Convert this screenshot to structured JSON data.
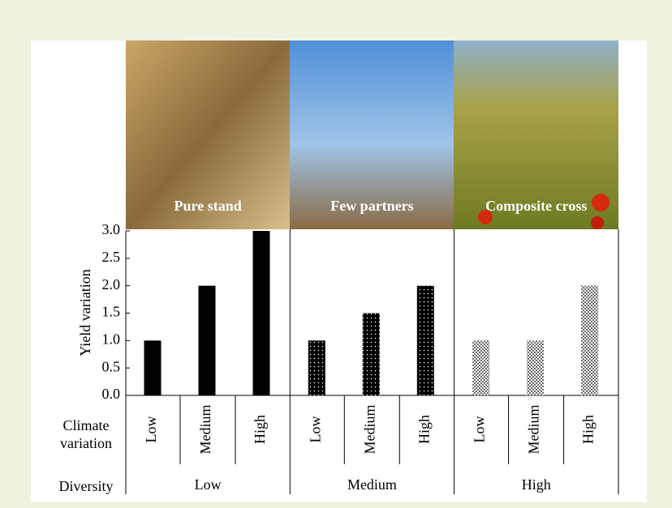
{
  "chart_data": {
    "type": "bar",
    "y_label": "Yield variation",
    "ylim": [
      0,
      3
    ],
    "yticks": [
      {
        "value": 0,
        "label": "0.0"
      },
      {
        "value": 0.5,
        "label": "0.5"
      },
      {
        "value": 1,
        "label": "1.0"
      },
      {
        "value": 1.5,
        "label": "1.5"
      },
      {
        "value": 2,
        "label": "2.0"
      },
      {
        "value": 2.5,
        "label": "2.5"
      },
      {
        "value": 3,
        "label": "3.0"
      }
    ],
    "x_label": "Climate variation",
    "group_label": "Diversity",
    "categories": [
      "Low",
      "Medium",
      "High"
    ],
    "groups": [
      {
        "name": "Low",
        "photo_label": "Pure stand",
        "fill": "solid",
        "values": [
          1,
          2,
          3
        ]
      },
      {
        "name": "Medium",
        "photo_label": "Few partners",
        "fill": "dotted-dark",
        "values": [
          1,
          1.5,
          2
        ]
      },
      {
        "name": "High",
        "photo_label": "Composite cross",
        "fill": "dotted-light",
        "values": [
          1,
          1,
          2
        ]
      }
    ]
  }
}
